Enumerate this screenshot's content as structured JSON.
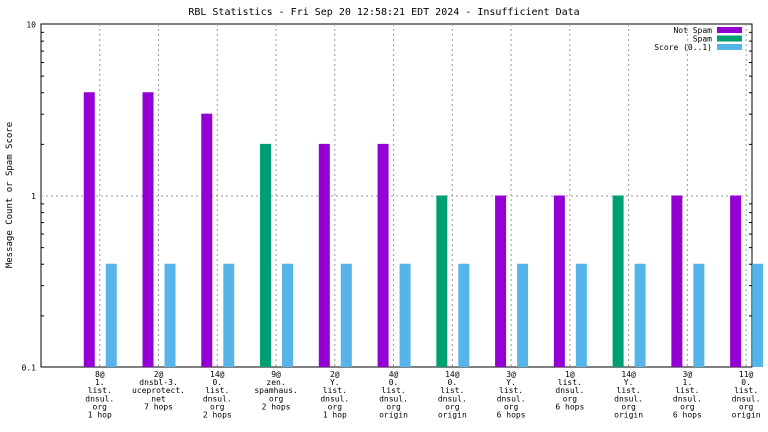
{
  "chart_data": {
    "type": "bar",
    "title": "RBL Statistics - Fri Sep 20 12:58:21 EDT 2024 - Insufficient Data",
    "xlabel": "",
    "ylabel": "Message Count or Spam Score",
    "y_scale": "log",
    "ylim": [
      0.1,
      10
    ],
    "yticks": [
      "0.1",
      "1",
      "10"
    ],
    "grid": true,
    "legend_position": "top-right",
    "categories": [
      [
        "8@",
        "1.",
        "list.",
        "dnsul.",
        "org",
        "1 hop"
      ],
      [
        "2@",
        "dnsbl-3.",
        "uceprotect.",
        "net",
        "7 hops"
      ],
      [
        "14@",
        "0.",
        "list.",
        "dnsul.",
        "org",
        "2 hops"
      ],
      [
        "9@",
        "zen.",
        "spamhaus.",
        "org",
        "2 hops"
      ],
      [
        "2@",
        "Y.",
        "list.",
        "dnsul.",
        "org",
        "1 hop"
      ],
      [
        "4@",
        "0.",
        "list.",
        "dnsul.",
        "org",
        "origin"
      ],
      [
        "14@",
        "0.",
        "list.",
        "dnsul.",
        "org",
        "origin"
      ],
      [
        "3@",
        "Y.",
        "list.",
        "dnsul.",
        "org",
        "6 hops"
      ],
      [
        "1@",
        "list.",
        "dnsul.",
        "org",
        "6 hops"
      ],
      [
        "14@",
        "Y.",
        "list.",
        "dnsul.",
        "org",
        "origin"
      ],
      [
        "3@",
        "1.",
        "list.",
        "dnsul.",
        "org",
        "6 hops"
      ],
      [
        "11@",
        "0.",
        "list.",
        "dnsul.",
        "org",
        "origin"
      ]
    ],
    "series": [
      {
        "name": "Not Spam",
        "color": "#9400d3",
        "values": [
          4,
          4,
          3,
          0,
          2,
          2,
          0,
          1,
          1,
          0,
          1,
          1
        ]
      },
      {
        "name": "Spam",
        "color": "#009e73",
        "values": [
          0,
          0,
          0,
          2,
          0,
          0,
          1,
          0,
          0,
          1,
          0,
          0
        ]
      },
      {
        "name": "Score (0..1)",
        "color": "#56b4e9",
        "values": [
          0.4,
          0.4,
          0.4,
          0.4,
          0.4,
          0.4,
          0.4,
          0.4,
          0.4,
          0.4,
          0.4,
          0.4
        ]
      }
    ]
  }
}
